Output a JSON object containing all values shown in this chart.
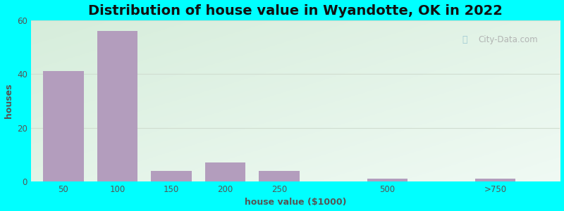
{
  "title": "Distribution of house value in Wyandotte, OK in 2022",
  "xlabel": "house value ($1000)",
  "ylabel": "houses",
  "bar_color": "#b39dbd",
  "background_outer": "#00ffff",
  "ylim": [
    0,
    60
  ],
  "yticks": [
    0,
    20,
    40,
    60
  ],
  "display_positions": [
    1,
    2,
    3,
    4,
    5,
    7,
    9
  ],
  "bar_heights": [
    41,
    56,
    4,
    7,
    4,
    1,
    1
  ],
  "bar_width": 0.75,
  "xtick_labels": [
    "50",
    "100",
    "150",
    "200",
    "250",
    "500",
    ">750"
  ],
  "title_fontsize": 14,
  "axis_label_fontsize": 9,
  "tick_fontsize": 8.5,
  "watermark_text": "City-Data.com",
  "grid_color": "#d0ddd0",
  "xlim": [
    0.4,
    10.2
  ]
}
